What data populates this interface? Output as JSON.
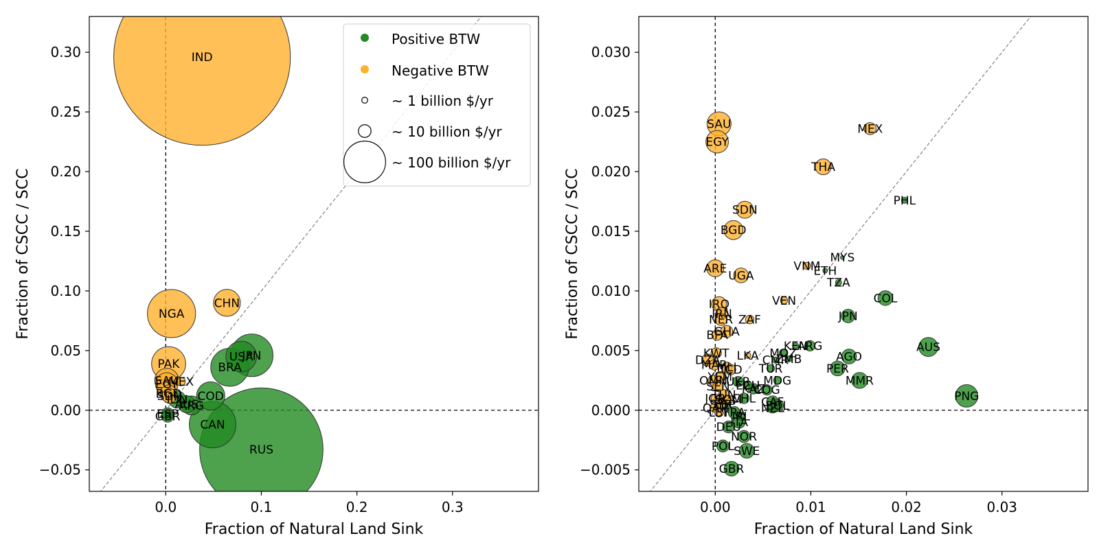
{
  "chart_data": [
    {
      "type": "scatter",
      "xlabel": "Fraction of Natural Land Sink",
      "ylabel": "Fraction of CSCC / SCC",
      "xlim": [
        -0.08,
        0.39
      ],
      "ylim": [
        -0.068,
        0.33
      ],
      "xticks": [
        0.0,
        0.1,
        0.2,
        0.3
      ],
      "xtick_labels": [
        "0.0",
        "0.1",
        "0.2",
        "0.3"
      ],
      "yticks": [
        -0.05,
        0.0,
        0.05,
        0.1,
        0.15,
        0.2,
        0.25,
        0.3
      ],
      "ytick_labels": [
        "−0.05",
        "0.00",
        "0.05",
        "0.10",
        "0.15",
        "0.20",
        "0.25",
        "0.30"
      ],
      "grid": false,
      "reference_lines": [
        "x=0 dashed",
        "y=0 dashed",
        "y=x dashed diagonal"
      ],
      "legend": {
        "placement": "top-right",
        "entries": [
          {
            "label": "Positive BTW",
            "marker": "green-dot"
          },
          {
            "label": "Negative BTW",
            "marker": "orange-dot"
          },
          {
            "label": "~ 1 billion $/yr",
            "marker": "circle",
            "size_billion": 1
          },
          {
            "label": "~ 10 billion $/yr",
            "marker": "circle",
            "size_billion": 10
          },
          {
            "label": "~ 100 billion $/yr",
            "marker": "circle",
            "size_billion": 100
          }
        ]
      },
      "points": [
        {
          "label": "IND",
          "x": 0.038,
          "y": 0.296,
          "group": "negative",
          "size": 430
        },
        {
          "label": "NGA",
          "x": 0.006,
          "y": 0.081,
          "group": "negative",
          "size": 32
        },
        {
          "label": "CHN",
          "x": 0.064,
          "y": 0.09,
          "group": "negative",
          "size": 10
        },
        {
          "label": "PAK",
          "x": 0.003,
          "y": 0.039,
          "group": "negative",
          "size": 16
        },
        {
          "label": "SAU",
          "x": 0.001,
          "y": 0.025,
          "group": "negative",
          "size": 8
        },
        {
          "label": "EGY",
          "x": 0.001,
          "y": 0.022,
          "group": "negative",
          "size": 7
        },
        {
          "label": "MEX",
          "x": 0.016,
          "y": 0.024,
          "group": "negative",
          "size": 1
        },
        {
          "label": "BGD",
          "x": 0.003,
          "y": 0.014,
          "group": "negative",
          "size": 4
        },
        {
          "label": "SDN",
          "x": 0.004,
          "y": 0.012,
          "group": "negative",
          "size": 3
        },
        {
          "label": "USA",
          "x": 0.079,
          "y": 0.045,
          "group": "positive",
          "size": 13
        },
        {
          "label": "JPN",
          "x": 0.09,
          "y": 0.046,
          "group": "positive",
          "size": 25
        },
        {
          "label": "BRA",
          "x": 0.067,
          "y": 0.036,
          "group": "positive",
          "size": 20
        },
        {
          "label": "COD",
          "x": 0.047,
          "y": 0.012,
          "group": "positive",
          "size": 11
        },
        {
          "label": "CAN",
          "x": 0.049,
          "y": -0.012,
          "group": "positive",
          "size": 30
        },
        {
          "label": "RUS",
          "x": 0.1,
          "y": -0.033,
          "group": "positive",
          "size": 210
        },
        {
          "label": "ARG",
          "x": 0.027,
          "y": 0.004,
          "group": "positive",
          "size": 5
        },
        {
          "label": "AUS",
          "x": 0.022,
          "y": 0.005,
          "group": "positive",
          "size": 4
        },
        {
          "label": "IDN",
          "x": 0.012,
          "y": 0.009,
          "group": "positive",
          "size": 4
        },
        {
          "label": "ESP",
          "x": 0.002,
          "y": -0.003,
          "group": "positive",
          "size": 2
        },
        {
          "label": "GBR",
          "x": 0.002,
          "y": -0.005,
          "group": "positive",
          "size": 2
        }
      ]
    },
    {
      "type": "scatter",
      "xlabel": "Fraction of Natural Land Sink",
      "ylabel": "Fraction of CSCC / SCC",
      "xlim": [
        -0.008,
        0.039
      ],
      "ylim": [
        -0.0068,
        0.033
      ],
      "xticks": [
        0.0,
        0.01,
        0.02,
        0.03
      ],
      "xtick_labels": [
        "0.00",
        "0.01",
        "0.02",
        "0.03"
      ],
      "yticks": [
        -0.005,
        0.0,
        0.005,
        0.01,
        0.015,
        0.02,
        0.025,
        0.03
      ],
      "ytick_labels": [
        "−0.005",
        "0.000",
        "0.005",
        "0.010",
        "0.015",
        "0.020",
        "0.025",
        "0.030"
      ],
      "grid": false,
      "reference_lines": [
        "x=0 dashed",
        "y=0 dashed",
        "y=x dashed diagonal"
      ],
      "points": [
        {
          "label": "SAU",
          "x": 0.0004,
          "y": 0.024,
          "group": "negative",
          "size": 8
        },
        {
          "label": "EGY",
          "x": 0.0002,
          "y": 0.0225,
          "group": "negative",
          "size": 7
        },
        {
          "label": "MEX",
          "x": 0.0162,
          "y": 0.0236,
          "group": "negative",
          "size": 2
        },
        {
          "label": "THA",
          "x": 0.0113,
          "y": 0.0204,
          "group": "negative",
          "size": 3.5
        },
        {
          "label": "SDN",
          "x": 0.0031,
          "y": 0.0168,
          "group": "negative",
          "size": 4
        },
        {
          "label": "BGD",
          "x": 0.0019,
          "y": 0.0151,
          "group": "negative",
          "size": 5
        },
        {
          "label": "ARE",
          "x": 0.0,
          "y": 0.0119,
          "group": "negative",
          "size": 4
        },
        {
          "label": "UGA",
          "x": 0.0027,
          "y": 0.0113,
          "group": "negative",
          "size": 3
        },
        {
          "label": "VNM",
          "x": 0.0096,
          "y": 0.0121,
          "group": "negative",
          "size": 0.7
        },
        {
          "label": "VEN",
          "x": 0.0072,
          "y": 0.0092,
          "group": "negative",
          "size": 0.7
        },
        {
          "label": "IRQ",
          "x": 0.0004,
          "y": 0.0089,
          "group": "negative",
          "size": 3
        },
        {
          "label": "IRN",
          "x": 0.0007,
          "y": 0.0081,
          "group": "negative",
          "size": 2
        },
        {
          "label": "NER",
          "x": 0.0006,
          "y": 0.0076,
          "group": "negative",
          "size": 2
        },
        {
          "label": "ZAF",
          "x": 0.0036,
          "y": 0.0076,
          "group": "negative",
          "size": 1
        },
        {
          "label": "GHA",
          "x": 0.0012,
          "y": 0.0066,
          "group": "negative",
          "size": 2
        },
        {
          "label": "BFA",
          "x": 0.0002,
          "y": 0.0063,
          "group": "negative",
          "size": 1.5
        },
        {
          "label": "KWT",
          "x": 0.0001,
          "y": 0.0048,
          "group": "negative",
          "size": 1.5
        },
        {
          "label": "LKA",
          "x": 0.0034,
          "y": 0.0046,
          "group": "negative",
          "size": 0.5
        },
        {
          "label": "DZA",
          "x": -0.0008,
          "y": 0.0042,
          "group": "negative",
          "size": 2
        },
        {
          "label": "MAR",
          "x": -0.0001,
          "y": 0.0038,
          "group": "negative",
          "size": 1.5
        },
        {
          "label": "PHL",
          "x": 0.0198,
          "y": 0.0176,
          "group": "positive",
          "size": 0.5
        },
        {
          "label": "MYS",
          "x": 0.0133,
          "y": 0.0128,
          "group": "positive",
          "size": 0.2
        },
        {
          "label": "ETH",
          "x": 0.0115,
          "y": 0.0117,
          "group": "positive",
          "size": 0.3
        },
        {
          "label": "TZA",
          "x": 0.0129,
          "y": 0.0107,
          "group": "positive",
          "size": 0.5
        },
        {
          "label": "COL",
          "x": 0.0178,
          "y": 0.0094,
          "group": "positive",
          "size": 3
        },
        {
          "label": "JPN",
          "x": 0.0139,
          "y": 0.0079,
          "group": "positive",
          "size": 2.5
        },
        {
          "label": "AUS",
          "x": 0.0223,
          "y": 0.0053,
          "group": "positive",
          "size": 5
        },
        {
          "label": "PNG",
          "x": 0.0263,
          "y": 0.0012,
          "group": "positive",
          "size": 7
        },
        {
          "label": "AGO",
          "x": 0.014,
          "y": 0.0045,
          "group": "positive",
          "size": 3
        },
        {
          "label": "PER",
          "x": 0.0128,
          "y": 0.0035,
          "group": "positive",
          "size": 3
        },
        {
          "label": "MMR",
          "x": 0.0151,
          "y": 0.0025,
          "group": "positive",
          "size": 3.5
        },
        {
          "label": "KEN",
          "x": 0.0084,
          "y": 0.0054,
          "group": "positive",
          "size": 0.5
        },
        {
          "label": "ARG",
          "x": 0.0099,
          "y": 0.0054,
          "group": "positive",
          "size": 1.5
        },
        {
          "label": "MOZ",
          "x": 0.0071,
          "y": 0.0048,
          "group": "positive",
          "size": 0.8
        },
        {
          "label": "ZMB",
          "x": 0.0077,
          "y": 0.0043,
          "group": "positive",
          "size": 0.5
        },
        {
          "label": "CMR",
          "x": 0.0063,
          "y": 0.0042,
          "group": "positive",
          "size": 0.5
        },
        {
          "label": "TUR",
          "x": 0.0058,
          "y": 0.0035,
          "group": "positive",
          "size": 0.8
        },
        {
          "label": "MDG",
          "x": 0.0065,
          "y": 0.0025,
          "group": "positive",
          "size": 0.8
        },
        {
          "label": "COG",
          "x": 0.0054,
          "y": 0.0017,
          "group": "positive",
          "size": 1.5
        },
        {
          "label": "CAF",
          "x": 0.006,
          "y": 0.0007,
          "group": "positive",
          "size": 2
        },
        {
          "label": "BOL",
          "x": 0.0065,
          "y": 0.0004,
          "group": "positive",
          "size": 2
        },
        {
          "label": "NZL",
          "x": 0.006,
          "y": 0.0002,
          "group": "positive",
          "size": 1.5
        },
        {
          "label": "SWE",
          "x": 0.0033,
          "y": -0.0034,
          "group": "positive",
          "size": 3
        },
        {
          "label": "NOR",
          "x": 0.003,
          "y": -0.0022,
          "group": "positive",
          "size": 2
        },
        {
          "label": "POL",
          "x": 0.0008,
          "y": -0.003,
          "group": "positive",
          "size": 2
        },
        {
          "label": "GBR",
          "x": 0.0017,
          "y": -0.0049,
          "group": "positive",
          "size": 3
        },
        {
          "label": "ITA",
          "x": 0.0025,
          "y": -0.001,
          "group": "positive",
          "size": 2
        },
        {
          "label": "DEU",
          "x": 0.0014,
          "y": -0.0014,
          "group": "positive",
          "size": 2
        },
        {
          "label": "FRA",
          "x": 0.002,
          "y": -0.0002,
          "group": "positive",
          "size": 2
        },
        {
          "label": "ESP",
          "x": 0.001,
          "y": 0.0005,
          "group": "positive",
          "size": 1.5
        },
        {
          "label": "CHL",
          "x": 0.003,
          "y": 0.001,
          "group": "positive",
          "size": 1.5
        },
        {
          "label": "KAZ",
          "x": 0.004,
          "y": 0.0018,
          "group": "positive",
          "size": 1.5
        },
        {
          "label": "UKR",
          "x": 0.0024,
          "y": 0.0024,
          "group": "positive",
          "size": 1.5
        },
        {
          "label": "ECU",
          "x": 0.0034,
          "y": 0.0021,
          "group": "positive",
          "size": 1
        },
        {
          "label": "IRL",
          "x": 0.0027,
          "y": -0.0005,
          "group": "positive",
          "size": 1
        },
        {
          "label": "MLI",
          "x": 0.0012,
          "y": 0.0036,
          "group": "negative",
          "size": 1.5
        },
        {
          "label": "TCD",
          "x": 0.0016,
          "y": 0.0034,
          "group": "negative",
          "size": 1.5
        },
        {
          "label": "OMN",
          "x": -0.0002,
          "y": 0.0025,
          "group": "negative",
          "size": 1.5
        },
        {
          "label": "YEM",
          "x": 0.0005,
          "y": 0.0028,
          "group": "negative",
          "size": 1.5
        },
        {
          "label": "SEN",
          "x": 0.0003,
          "y": 0.002,
          "group": "negative",
          "size": 1.5
        },
        {
          "label": "TUN",
          "x": 0.0009,
          "y": 0.0013,
          "group": "negative",
          "size": 1.5
        },
        {
          "label": "JOR",
          "x": 0.0,
          "y": 0.001,
          "group": "negative",
          "size": 1
        },
        {
          "label": "SYR",
          "x": 0.0006,
          "y": 0.0005,
          "group": "negative",
          "size": 1
        },
        {
          "label": "QAT",
          "x": -0.0001,
          "y": 0.0002,
          "group": "negative",
          "size": 1
        },
        {
          "label": "SOM",
          "x": 0.0014,
          "y": 0.0009,
          "group": "negative",
          "size": 1
        },
        {
          "label": "LBY",
          "x": 0.0004,
          "y": -0.0002,
          "group": "negative",
          "size": 1
        }
      ]
    }
  ]
}
